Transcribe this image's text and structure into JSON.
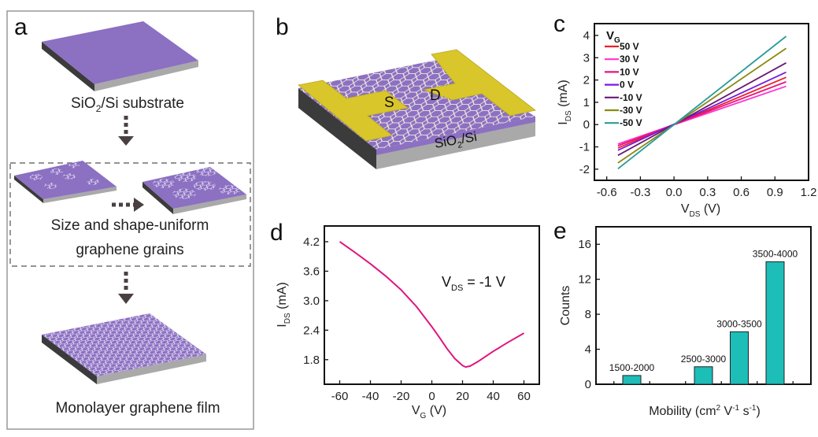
{
  "panel_a": {
    "letter": "a",
    "substrate_label": {
      "pre": "SiO",
      "sub": "2",
      "post": "/Si substrate"
    },
    "grains_label_line1": "Size and shape-uniform",
    "grains_label_line2": "graphene grains",
    "film_label": "Monolayer graphene film"
  },
  "panel_b": {
    "letter": "b",
    "source_label": "S",
    "drain_label": "D",
    "substrate_label": {
      "pre": "SiO",
      "sub": "2",
      "post": "/Si"
    }
  },
  "colors": {
    "substrate_top": "#8c70c2",
    "substrate_side_dark": "#3b3b3b",
    "substrate_side_light": "#a9a9a9",
    "electrode": "#d9c62b",
    "arrow": "#4a4040"
  },
  "chart_data": [
    {
      "id": "c",
      "letter": "c",
      "type": "line",
      "xlabel": {
        "main": "V",
        "sub": "DS",
        "unit": " (V)"
      },
      "ylabel": {
        "main": "I",
        "sub": "DS",
        "unit": " (mA)"
      },
      "xlim": [
        -0.71,
        1.2
      ],
      "ylim": [
        -2.5,
        4.53
      ],
      "xticks": [
        "-0.6",
        "-0.3",
        "0.0",
        "0.3",
        "0.6",
        "0.9",
        "1.2"
      ],
      "yticks": [
        "-2",
        "-1",
        "0",
        "1",
        "2",
        "3",
        "4"
      ],
      "legend": {
        "title_main": "V",
        "title_sub": "G",
        "placement": "top-left"
      },
      "series": [
        {
          "name": "50 V",
          "color": "#e8202a",
          "x": [
            -0.5,
            1.0
          ],
          "y": [
            -1.05,
            2.12
          ]
        },
        {
          "name": "30 V",
          "color": "#ff33d0",
          "x": [
            -0.5,
            1.0
          ],
          "y": [
            -0.87,
            1.72
          ]
        },
        {
          "name": "10 V",
          "color": "#e8157a",
          "x": [
            -0.5,
            1.0
          ],
          "y": [
            -0.95,
            1.92
          ]
        },
        {
          "name": "0 V",
          "color": "#7a1ae0",
          "x": [
            -0.5,
            1.0
          ],
          "y": [
            -1.15,
            2.35
          ]
        },
        {
          "name": "-10 V",
          "color": "#6a1a72",
          "x": [
            -0.5,
            1.0
          ],
          "y": [
            -1.38,
            2.77
          ]
        },
        {
          "name": "-30 V",
          "color": "#8a8a12",
          "x": [
            -0.5,
            1.0
          ],
          "y": [
            -1.72,
            3.42
          ]
        },
        {
          "name": "-50 V",
          "color": "#2a9a9a",
          "x": [
            -0.5,
            1.0
          ],
          "y": [
            -1.98,
            3.96
          ]
        }
      ]
    },
    {
      "id": "d",
      "letter": "d",
      "type": "line",
      "xlabel": {
        "main": "V",
        "sub": "G",
        "unit": " (V)"
      },
      "ylabel": {
        "main": "I",
        "sub": "DS",
        "unit": " (mA)"
      },
      "xlim": [
        -70,
        70
      ],
      "ylim": [
        1.3,
        4.52
      ],
      "xticks": [
        "-60",
        "-40",
        "-20",
        "0",
        "20",
        "40",
        "60"
      ],
      "yticks": [
        "1.8",
        "2.4",
        "3.0",
        "3.6",
        "4.2"
      ],
      "annotation": {
        "main": "V",
        "sub": "DS",
        "post": " = -1 V"
      },
      "series": [
        {
          "color": "#e0157e",
          "x": [
            -60,
            -50,
            -40,
            -30,
            -20,
            -10,
            0,
            5,
            10,
            15,
            20,
            22,
            25,
            30,
            40,
            50,
            60
          ],
          "y": [
            4.2,
            3.98,
            3.75,
            3.5,
            3.22,
            2.88,
            2.47,
            2.25,
            2.02,
            1.82,
            1.68,
            1.65,
            1.67,
            1.76,
            1.97,
            2.16,
            2.34
          ]
        }
      ]
    },
    {
      "id": "e",
      "letter": "e",
      "type": "bar",
      "xlabel": {
        "main": "Mobility (cm",
        "sup1": "2",
        "mid": " V",
        "sup2": "-1",
        "mid2": " s",
        "sup3": "-1",
        "end": ")"
      },
      "ylabel": "Counts",
      "xlim": [
        1250,
        4250
      ],
      "ylim": [
        0,
        18
      ],
      "yticks": [
        "0",
        "4",
        "8",
        "12",
        "16"
      ],
      "bar_color": "#1dbdb8",
      "categories": [
        "1500-2000",
        "2500-3000",
        "3000-3500",
        "3500-4000"
      ],
      "bin_centers": [
        1750,
        2750,
        3250,
        3750
      ],
      "values": [
        1,
        2,
        6,
        14
      ]
    }
  ]
}
